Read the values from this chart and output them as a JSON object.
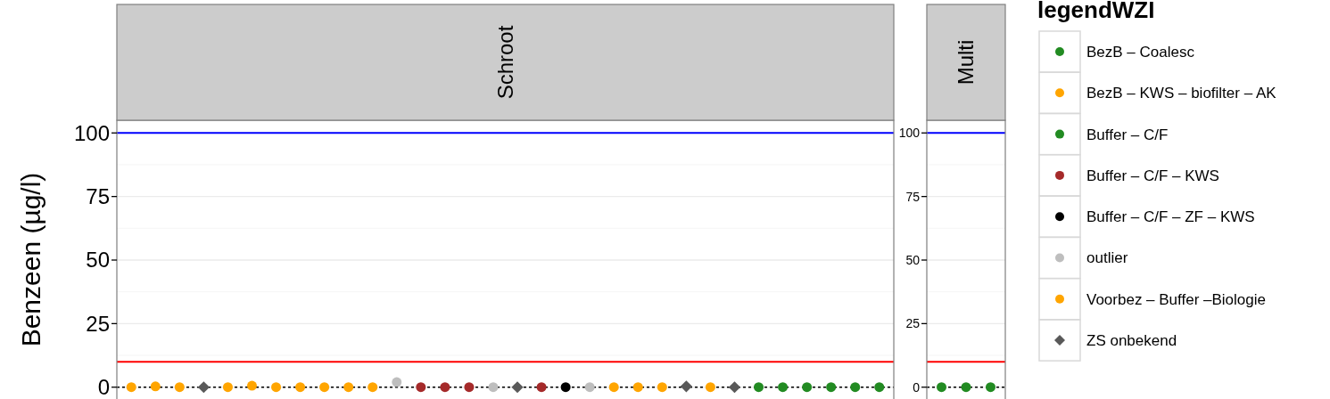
{
  "chart_data": [
    {
      "type": "scatter",
      "title": "Schroot",
      "ylabel": "Benzeen (µg/l)",
      "legend_title": "legendWZI",
      "legend": "right",
      "grid": "y",
      "ylim": [
        -5,
        105
      ],
      "yticks": [
        0,
        25,
        50,
        75,
        100
      ],
      "categories": [
        null,
        null,
        null,
        null,
        null,
        null,
        null,
        null,
        null,
        null,
        null,
        null,
        null,
        null,
        null,
        null,
        null,
        null,
        null,
        null,
        null,
        null,
        null,
        null,
        null,
        null,
        null,
        null,
        null,
        null,
        null,
        null
      ],
      "ref_lines": [
        {
          "axis": "y",
          "value": 100,
          "color": "#0000ff",
          "line_style": "solid"
        },
        {
          "axis": "y",
          "value": 10,
          "color": "#ff0000",
          "line_style": "solid"
        },
        {
          "axis": "y",
          "value": 0,
          "color": "#000000",
          "line_style": "dotted"
        }
      ],
      "series": [
        {
          "name": "BezB – Coalesc",
          "color": "#228b22",
          "marker": "circle",
          "values": [
            null,
            null,
            null,
            null,
            null,
            null,
            null,
            null,
            null,
            null,
            null,
            null,
            null,
            null,
            null,
            null,
            null,
            null,
            null,
            null,
            null,
            null,
            null,
            null,
            null,
            null,
            0,
            0,
            0,
            0,
            0,
            0
          ]
        },
        {
          "name": "BezB – KWS – biofilter – AK",
          "color": "#ffa500",
          "marker": "circle",
          "values": [
            0,
            0.3,
            0,
            null,
            0,
            0.6,
            0,
            0,
            0,
            0,
            0,
            null,
            null,
            null,
            null,
            null,
            null,
            null,
            null,
            null,
            null,
            null,
            null,
            null,
            null,
            null,
            null,
            null,
            null,
            null,
            null,
            null
          ]
        },
        {
          "name": "Buffer – C/F",
          "color": "#228b22",
          "marker": "circle",
          "values": [
            null,
            null,
            null,
            null,
            null,
            null,
            null,
            null,
            null,
            null,
            null,
            null,
            null,
            null,
            null,
            null,
            null,
            null,
            null,
            null,
            null,
            null,
            null,
            null,
            null,
            null,
            null,
            null,
            null,
            null,
            null,
            null
          ]
        },
        {
          "name": "Buffer – C/F – KWS",
          "color": "#a52a2a",
          "marker": "circle",
          "values": [
            null,
            null,
            null,
            null,
            null,
            null,
            null,
            null,
            null,
            null,
            null,
            null,
            0,
            0,
            0,
            null,
            null,
            0,
            null,
            null,
            null,
            null,
            null,
            null,
            null,
            null,
            null,
            null,
            null,
            null,
            null,
            null
          ]
        },
        {
          "name": "Buffer – C/F – ZF – KWS",
          "color": "#000000",
          "marker": "circle",
          "values": [
            null,
            null,
            null,
            null,
            null,
            null,
            null,
            null,
            null,
            null,
            null,
            null,
            null,
            null,
            null,
            null,
            null,
            null,
            0,
            null,
            null,
            null,
            null,
            null,
            null,
            null,
            null,
            null,
            null,
            null,
            null,
            null
          ]
        },
        {
          "name": "outlier",
          "color": "#bebebe",
          "marker": "circle",
          "values": [
            null,
            null,
            null,
            null,
            null,
            null,
            null,
            null,
            null,
            null,
            null,
            2,
            null,
            null,
            null,
            0,
            null,
            null,
            null,
            0,
            null,
            null,
            null,
            null,
            null,
            null,
            null,
            null,
            null,
            null,
            null,
            null
          ]
        },
        {
          "name": "Voorbez – Buffer –Biologie",
          "color": "#ffa500",
          "marker": "circle",
          "values": [
            null,
            null,
            null,
            null,
            null,
            null,
            null,
            null,
            null,
            null,
            null,
            null,
            null,
            null,
            null,
            null,
            null,
            null,
            null,
            null,
            0,
            0,
            0,
            null,
            0,
            null,
            null,
            null,
            null,
            null,
            null,
            null
          ]
        },
        {
          "name": "ZS onbekend",
          "color": "#595959",
          "marker": "diamond",
          "values": [
            null,
            null,
            null,
            0,
            null,
            null,
            null,
            null,
            null,
            null,
            null,
            null,
            null,
            null,
            null,
            null,
            0,
            null,
            null,
            null,
            null,
            null,
            null,
            0.3,
            null,
            0,
            null,
            null,
            null,
            null,
            null,
            null
          ]
        }
      ]
    },
    {
      "type": "scatter",
      "title": "Multi",
      "grid": "y",
      "ylim": [
        -5,
        105
      ],
      "yticks": [
        0,
        25,
        50,
        75,
        100
      ],
      "categories": [
        null,
        null,
        null
      ],
      "ref_lines": [
        {
          "axis": "y",
          "value": 100,
          "color": "#0000ff",
          "line_style": "solid"
        },
        {
          "axis": "y",
          "value": 10,
          "color": "#ff0000",
          "line_style": "solid"
        },
        {
          "axis": "y",
          "value": 0,
          "color": "#000000",
          "line_style": "dotted"
        }
      ],
      "series": [
        {
          "color": "#228b22",
          "marker": "circle",
          "values": [
            0,
            0,
            0
          ]
        }
      ]
    }
  ]
}
